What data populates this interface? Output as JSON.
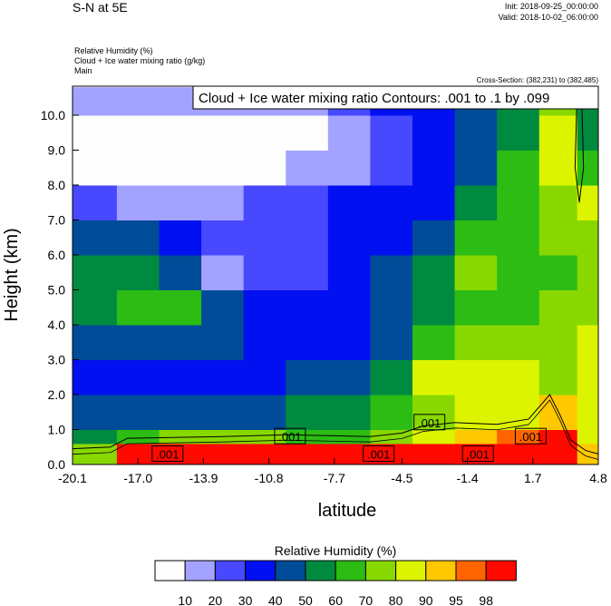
{
  "header": {
    "title": "S-N at 5E",
    "init": "Init: 2018-09-25_00:00:00",
    "valid": "Valid: 2018-10-02_06:00:00",
    "field_lines": [
      "Relative Humidity   (%)",
      "Cloud + Ice water mixing ratio   (g/kg)",
      "Main"
    ],
    "cross_section": "Cross-Section: (382,231) to (382,485)"
  },
  "chart_data": {
    "type": "heatmap",
    "title": "S-N at 5E",
    "xlabel": "latitude",
    "ylabel": "Height (km)",
    "xlim": [
      -20.1,
      4.8
    ],
    "ylim": [
      0,
      10.8
    ],
    "xticks": [
      "-20.1",
      "-17.0",
      "-13.9",
      "-10.8",
      "-7.7",
      "-4.5",
      "-1.4",
      "1.7",
      "4.8"
    ],
    "xtick_values": [
      -20.1,
      -17.0,
      -13.9,
      -10.8,
      -7.7,
      -4.5,
      -1.4,
      1.7,
      4.8
    ],
    "yticks": [
      "0.0",
      "1.0",
      "2.0",
      "3.0",
      "4.0",
      "5.0",
      "6.0",
      "7.0",
      "8.0",
      "9.0",
      "10.0"
    ],
    "ytick_values": [
      0,
      1,
      2,
      3,
      4,
      5,
      6,
      7,
      8,
      9,
      10
    ],
    "x_edges": [
      -20.1,
      -18,
      -16,
      -14,
      -12,
      -10,
      -8,
      -6,
      -4,
      -2,
      0,
      2,
      3.8,
      4.8
    ],
    "y_edges": [
      0,
      0.6,
      1.0,
      2.0,
      3.0,
      4.0,
      5.0,
      6.0,
      7.0,
      8.0,
      9.0,
      10.0,
      10.8
    ],
    "rh_grid_bottom_to_top": [
      [
        75,
        99,
        99,
        99,
        99,
        99,
        99,
        99,
        99,
        99,
        99,
        99,
        92
      ],
      [
        55,
        65,
        75,
        75,
        75,
        65,
        65,
        75,
        85,
        92,
        96,
        99,
        85
      ],
      [
        45,
        45,
        45,
        45,
        45,
        55,
        55,
        65,
        75,
        85,
        85,
        92,
        85
      ],
      [
        35,
        35,
        35,
        35,
        35,
        45,
        45,
        55,
        85,
        85,
        85,
        75,
        85
      ],
      [
        45,
        45,
        45,
        45,
        35,
        35,
        35,
        45,
        65,
        75,
        75,
        75,
        85
      ],
      [
        55,
        65,
        65,
        45,
        35,
        35,
        35,
        45,
        55,
        65,
        65,
        75,
        75
      ],
      [
        55,
        55,
        45,
        15,
        25,
        25,
        35,
        45,
        55,
        75,
        65,
        65,
        75
      ],
      [
        45,
        45,
        35,
        25,
        25,
        25,
        35,
        35,
        45,
        65,
        65,
        75,
        75
      ],
      [
        25,
        15,
        15,
        15,
        25,
        25,
        35,
        35,
        35,
        55,
        65,
        75,
        85
      ],
      [
        5,
        5,
        5,
        5,
        5,
        15,
        15,
        25,
        35,
        45,
        65,
        85,
        65
      ],
      [
        5,
        5,
        5,
        5,
        5,
        5,
        15,
        25,
        35,
        45,
        55,
        85,
        55
      ],
      [
        15,
        15,
        15,
        15,
        15,
        15,
        25,
        35,
        35,
        45,
        55,
        75,
        55
      ]
    ],
    "contour_title": "Cloud + Ice water mixing ratio Contours: .001 to .1 by .099",
    "contour_labels": [
      {
        "text": ".001",
        "lat": -15.6,
        "h": 0.3
      },
      {
        "text": ".001",
        "lat": -9.8,
        "h": 0.8
      },
      {
        "text": ".001",
        "lat": -5.6,
        "h": 0.3
      },
      {
        "text": ".001",
        "lat": -3.2,
        "h": 1.2
      },
      {
        "text": ".001",
        "lat": -0.9,
        "h": 0.3
      },
      {
        "text": ".001",
        "lat": 1.6,
        "h": 0.8
      }
    ],
    "contour_line": [
      [
        -20.1,
        0.45
      ],
      [
        -18.3,
        0.5
      ],
      [
        -17.5,
        0.75
      ],
      [
        -13,
        0.8
      ],
      [
        -10,
        0.85
      ],
      [
        -6,
        0.8
      ],
      [
        -4.5,
        0.9
      ],
      [
        -3.5,
        1.1
      ],
      [
        -2,
        1.2
      ],
      [
        0,
        1.15
      ],
      [
        1.5,
        1.3
      ],
      [
        2.5,
        2.0
      ],
      [
        3.0,
        1.4
      ],
      [
        3.5,
        0.7
      ],
      [
        4.2,
        0.4
      ],
      [
        4.8,
        0.3
      ]
    ],
    "contour_line_upper": [
      [
        3.8,
        10.8
      ],
      [
        3.7,
        8.5
      ],
      [
        3.9,
        7.5
      ],
      [
        4.1,
        8.5
      ],
      [
        4.0,
        10.8
      ]
    ],
    "colorbar": {
      "title": "Relative Humidity  (%)",
      "levels": [
        "10",
        "20",
        "30",
        "40",
        "50",
        "60",
        "70",
        "80",
        "90",
        "95",
        "98"
      ],
      "level_values": [
        10,
        20,
        30,
        40,
        50,
        60,
        70,
        80,
        90,
        95,
        98
      ],
      "colors": [
        "#fdfdfd",
        "#a3a3ff",
        "#4848ff",
        "#0010f0",
        "#004c98",
        "#008a40",
        "#2cbc14",
        "#88d800",
        "#dcf400",
        "#ffc800",
        "#ff6400",
        "#ff0a00"
      ]
    }
  }
}
